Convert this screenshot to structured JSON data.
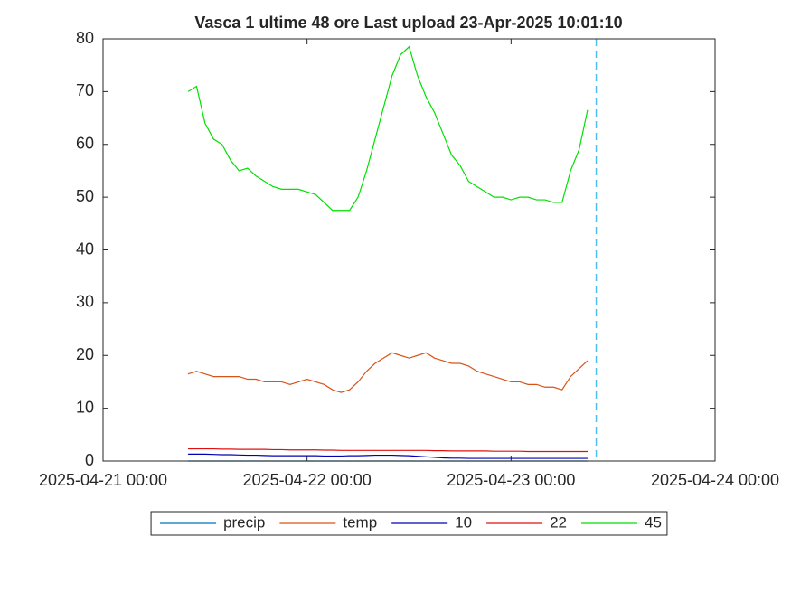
{
  "chart_data": {
    "type": "line",
    "title": "Vasca 1  ultime 48  ore Last upload  23-Apr-2025 10:01:10",
    "x": [
      "2025-04-21 10:00",
      "2025-04-21 11:00",
      "2025-04-21 12:00",
      "2025-04-21 13:00",
      "2025-04-21 14:00",
      "2025-04-21 15:00",
      "2025-04-21 16:00",
      "2025-04-21 17:00",
      "2025-04-21 18:00",
      "2025-04-21 19:00",
      "2025-04-21 20:00",
      "2025-04-21 21:00",
      "2025-04-21 22:00",
      "2025-04-21 23:00",
      "2025-04-22 00:00",
      "2025-04-22 01:00",
      "2025-04-22 02:00",
      "2025-04-22 03:00",
      "2025-04-22 04:00",
      "2025-04-22 05:00",
      "2025-04-22 06:00",
      "2025-04-22 07:00",
      "2025-04-22 08:00",
      "2025-04-22 09:00",
      "2025-04-22 10:00",
      "2025-04-22 11:00",
      "2025-04-22 12:00",
      "2025-04-22 13:00",
      "2025-04-22 14:00",
      "2025-04-22 15:00",
      "2025-04-22 16:00",
      "2025-04-22 17:00",
      "2025-04-22 18:00",
      "2025-04-22 19:00",
      "2025-04-22 20:00",
      "2025-04-22 21:00",
      "2025-04-22 22:00",
      "2025-04-22 23:00",
      "2025-04-23 00:00",
      "2025-04-23 01:00",
      "2025-04-23 02:00",
      "2025-04-23 03:00",
      "2025-04-23 04:00",
      "2025-04-23 05:00",
      "2025-04-23 06:00",
      "2025-04-23 07:00",
      "2025-04-23 08:00",
      "2025-04-23 09:00"
    ],
    "series": [
      {
        "name": "precip",
        "color": "#0072BD",
        "values": [
          0,
          0,
          0,
          0,
          0,
          0,
          0,
          0,
          0,
          0,
          0,
          0,
          0,
          0,
          0,
          0,
          0,
          0,
          0,
          0,
          0,
          0,
          0,
          0,
          0,
          0,
          0,
          0,
          0,
          0,
          0,
          0,
          0,
          0,
          0,
          0,
          0,
          0,
          0,
          0,
          0,
          0,
          0,
          0,
          0,
          0,
          0,
          0
        ]
      },
      {
        "name": "temp",
        "color": "#D95319",
        "values": [
          16.5,
          17,
          16.5,
          16,
          16,
          16,
          16,
          15.5,
          15.5,
          15,
          15,
          15,
          14.5,
          15,
          15.5,
          15,
          14.5,
          13.5,
          13,
          13.5,
          15,
          17,
          18.5,
          19.5,
          20.5,
          20,
          19.5,
          20,
          20.5,
          19.5,
          19,
          18.5,
          18.5,
          18,
          17,
          16.5,
          16,
          15.5,
          15,
          15,
          14.5,
          14.5,
          14,
          14,
          13.5,
          16,
          17.5,
          19
        ]
      },
      {
        "name": "10",
        "color": "#0000B4",
        "values": [
          1.3,
          1.3,
          1.3,
          1.25,
          1.2,
          1.2,
          1.15,
          1.1,
          1.1,
          1.05,
          1.0,
          1.0,
          1.0,
          1.0,
          1.0,
          1.0,
          0.95,
          0.95,
          0.95,
          1.0,
          1.0,
          1.05,
          1.1,
          1.1,
          1.1,
          1.05,
          1.0,
          0.9,
          0.8,
          0.7,
          0.6,
          0.55,
          0.55,
          0.5,
          0.5,
          0.5,
          0.5,
          0.5,
          0.5,
          0.5,
          0.5,
          0.5,
          0.5,
          0.5,
          0.5,
          0.5,
          0.5,
          0.5
        ]
      },
      {
        "name": "22",
        "color": "#E01010",
        "values": [
          2.3,
          2.3,
          2.3,
          2.3,
          2.25,
          2.25,
          2.2,
          2.2,
          2.2,
          2.2,
          2.15,
          2.15,
          2.1,
          2.1,
          2.1,
          2.1,
          2.05,
          2.05,
          2.0,
          2.0,
          2.0,
          2.0,
          2.0,
          2.0,
          2.0,
          2.0,
          2.0,
          2.0,
          2.0,
          1.95,
          1.95,
          1.9,
          1.9,
          1.9,
          1.9,
          1.9,
          1.85,
          1.85,
          1.85,
          1.85,
          1.8,
          1.8,
          1.8,
          1.8,
          1.8,
          1.8,
          1.8,
          1.8
        ]
      },
      {
        "name": "45",
        "color": "#00E000",
        "values": [
          70,
          71,
          64,
          61,
          60,
          57,
          55,
          55.5,
          54,
          53,
          52,
          51.5,
          51.5,
          51.5,
          51,
          50.5,
          49,
          47.5,
          47.5,
          47.5,
          50,
          55,
          61,
          67,
          73,
          77,
          78.5,
          73,
          69,
          66,
          62,
          58,
          56,
          53,
          52,
          51,
          50,
          50,
          49.5,
          50,
          50,
          49.5,
          49.5,
          49,
          49,
          55,
          59,
          66.5
        ]
      }
    ],
    "xlim": [
      "2025-04-21 00:00",
      "2025-04-24 00:00"
    ],
    "xticks": [
      "2025-04-21 00:00",
      "2025-04-22 00:00",
      "2025-04-23 00:00",
      "2025-04-24 00:00"
    ],
    "ylim": [
      0,
      80
    ],
    "yticks": [
      0,
      10,
      20,
      30,
      40,
      50,
      60,
      70,
      80
    ],
    "now_line": {
      "x": "2025-04-23 10:01:10",
      "color": "#4DBEEE"
    },
    "legend": "bottom"
  }
}
